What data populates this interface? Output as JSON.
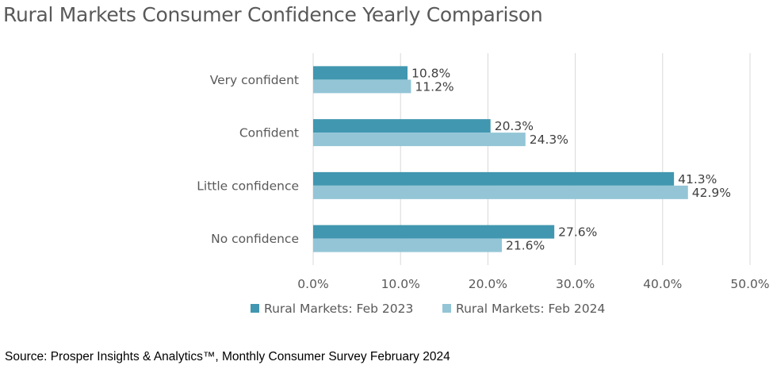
{
  "chart_data": {
    "type": "bar",
    "orientation": "horizontal",
    "title": "Rural Markets Consumer Confidence Yearly Comparison",
    "categories": [
      "Very confident",
      "Confident",
      "Little confidence",
      "No confidence"
    ],
    "series": [
      {
        "name": "Rural Markets: Feb 2023",
        "values": [
          10.8,
          20.3,
          41.3,
          27.6
        ],
        "labels": [
          "10.8%",
          "20.3%",
          "41.3%",
          "27.6%"
        ],
        "color": "#4197b0"
      },
      {
        "name": "Rural Markets: Feb 2024",
        "values": [
          11.2,
          24.3,
          42.9,
          21.6
        ],
        "labels": [
          "11.2%",
          "24.3%",
          "42.9%",
          "21.6%"
        ],
        "color": "#93c5d6"
      }
    ],
    "xlim": [
      0,
      50
    ],
    "xticks": [
      "0.0%",
      "10.0%",
      "20.0%",
      "30.0%",
      "40.0%",
      "50.0%"
    ],
    "grid": "vertical",
    "legend_position": "bottom"
  },
  "source": "Source: Prosper Insights & Analytics™, Monthly Consumer Survey February 2024"
}
